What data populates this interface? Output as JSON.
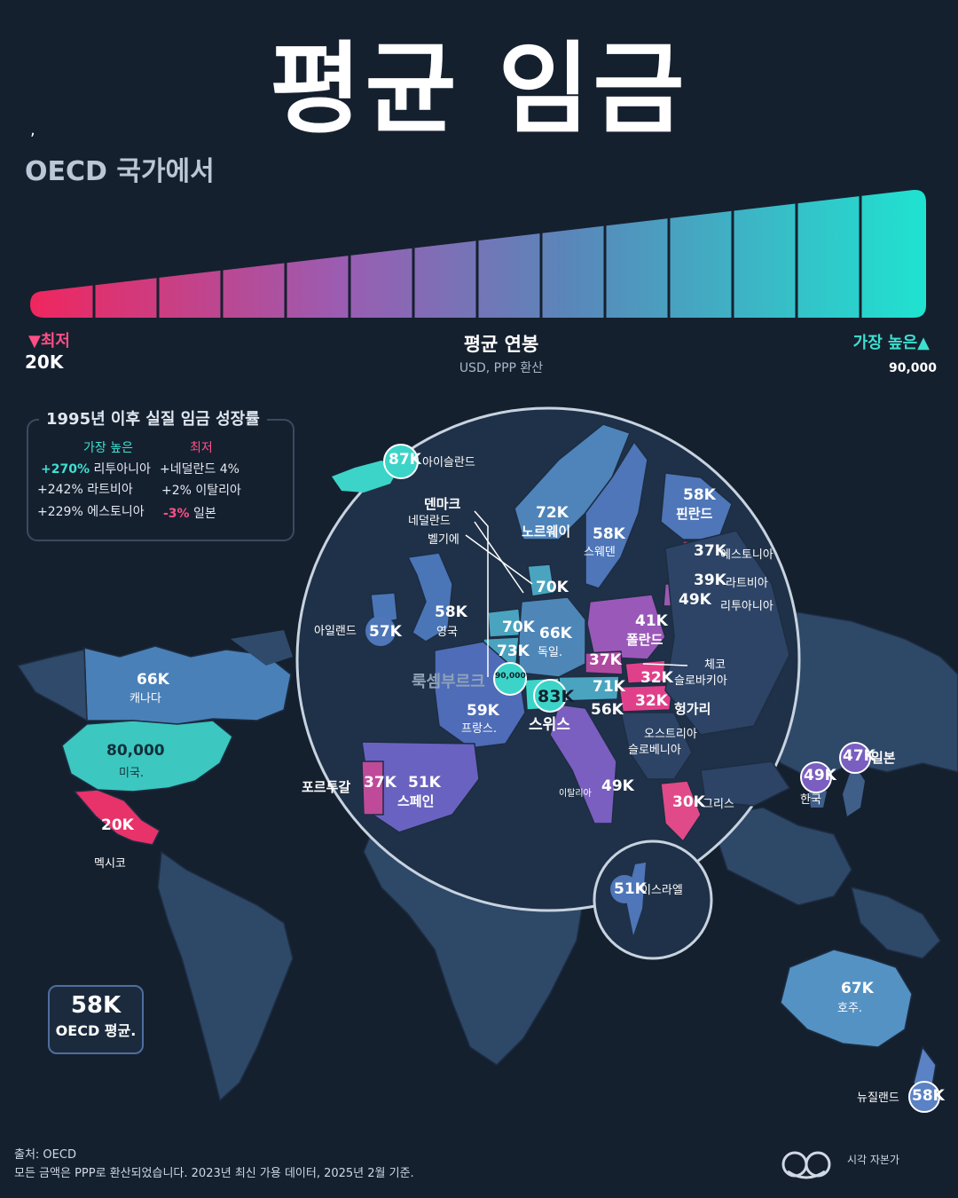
{
  "title": "평균 임금",
  "subtitle": "OECD 국가에서",
  "tick_mark": ",",
  "legend": {
    "low_label": "▼최저",
    "low_value": "20K",
    "center_title": "평균 연봉",
    "center_subtitle": "USD, PPP 환산",
    "high_label": "가장 높은▲",
    "high_value": "90,000",
    "colors": [
      "#f0265e",
      "#e0337a",
      "#d0438f",
      "#bd52a1",
      "#a85aab",
      "#955fb3",
      "#8062b8",
      "#6b67ba",
      "#5d70b6",
      "#5a80b8",
      "#5a92bc",
      "#5aa6c0",
      "#4cbac4",
      "#3bcfcb",
      "#1fe3d0"
    ]
  },
  "growth": {
    "title": "1995년 이후 실질 임금 성장률",
    "highest_label": "가장 높은",
    "lowest_label": "최저",
    "highest": [
      {
        "value": "+270%",
        "name": "리투아니아"
      },
      {
        "value": "+242%",
        "name": "라트비아"
      },
      {
        "value": "+229%",
        "name": "에스토니아"
      }
    ],
    "lowest": [
      {
        "value": "+네덜란드 4%",
        "name": ""
      },
      {
        "value": "+2%",
        "name": "이탈리아"
      },
      {
        "value": "-3%",
        "name": "일본"
      }
    ]
  },
  "countries": {
    "iceland": {
      "value": "87K",
      "name": "아이슬란드"
    },
    "norway": {
      "value": "72K",
      "name": "노르웨이"
    },
    "sweden": {
      "value": "58K",
      "name": "스웨덴"
    },
    "finland": {
      "value": "58K",
      "name": "핀란드"
    },
    "estonia": {
      "value": "37K",
      "name": "에스토니아"
    },
    "latvia": {
      "value": "39K",
      "name": "라트비아"
    },
    "lithuania": {
      "value": "49K",
      "name": "리투아니아"
    },
    "denmark": {
      "value": "70K",
      "name": "덴마크"
    },
    "netherlands": {
      "value": "70K",
      "name": "네덜란드"
    },
    "belgium": {
      "value": "73K",
      "name": "벨기에"
    },
    "uk": {
      "value": "58K",
      "name": "영국"
    },
    "ireland": {
      "value": "57K",
      "name": "아일랜드"
    },
    "germany": {
      "value": "66K",
      "name": "독일."
    },
    "poland": {
      "value": "41K",
      "name": "폴란드"
    },
    "czech": {
      "value": "37K",
      "name": "체코"
    },
    "slovakia": {
      "value": "32K",
      "name": "슬로바키아"
    },
    "hungary": {
      "value": "32K",
      "name": "헝가리"
    },
    "austria": {
      "value": "71K",
      "name": "오스트리아"
    },
    "slovenia": {
      "value": "56K",
      "name": "슬로베니아"
    },
    "luxembourg": {
      "value": "90,000",
      "name": "룩셈부르크"
    },
    "switzerland": {
      "value": "83K",
      "name": "스위스"
    },
    "france": {
      "value": "59K",
      "name": "프랑스."
    },
    "portugal": {
      "value": "37K",
      "name": "포르투갈"
    },
    "spain": {
      "value": "51K",
      "name": "스페인"
    },
    "italy": {
      "value": "49K",
      "name": "이탈리아"
    },
    "greece": {
      "value": "30K",
      "name": "그리스"
    },
    "israel": {
      "value": "51K",
      "name": "이스라엘"
    },
    "canada": {
      "value": "66K",
      "name": "캐나다"
    },
    "usa": {
      "value": "80,000",
      "name": "미국."
    },
    "mexico": {
      "value": "20K",
      "name": "멕시코"
    },
    "japan": {
      "value": "47K",
      "name": "일본"
    },
    "korea": {
      "value": "49K",
      "name": "한국"
    },
    "australia": {
      "value": "67K",
      "name": "호주."
    },
    "newzealand": {
      "value": "58K",
      "name": "뉴질랜드"
    }
  },
  "oecd_average": {
    "value": "58K",
    "label": "OECD 평균."
  },
  "footer": {
    "source": "출처: OECD",
    "note": "모든 금액은 PPP로 환산되었습니다. 2023년 최신 가용 데이터, 2025년 2월 기준.",
    "brand": "시각 자본가"
  }
}
